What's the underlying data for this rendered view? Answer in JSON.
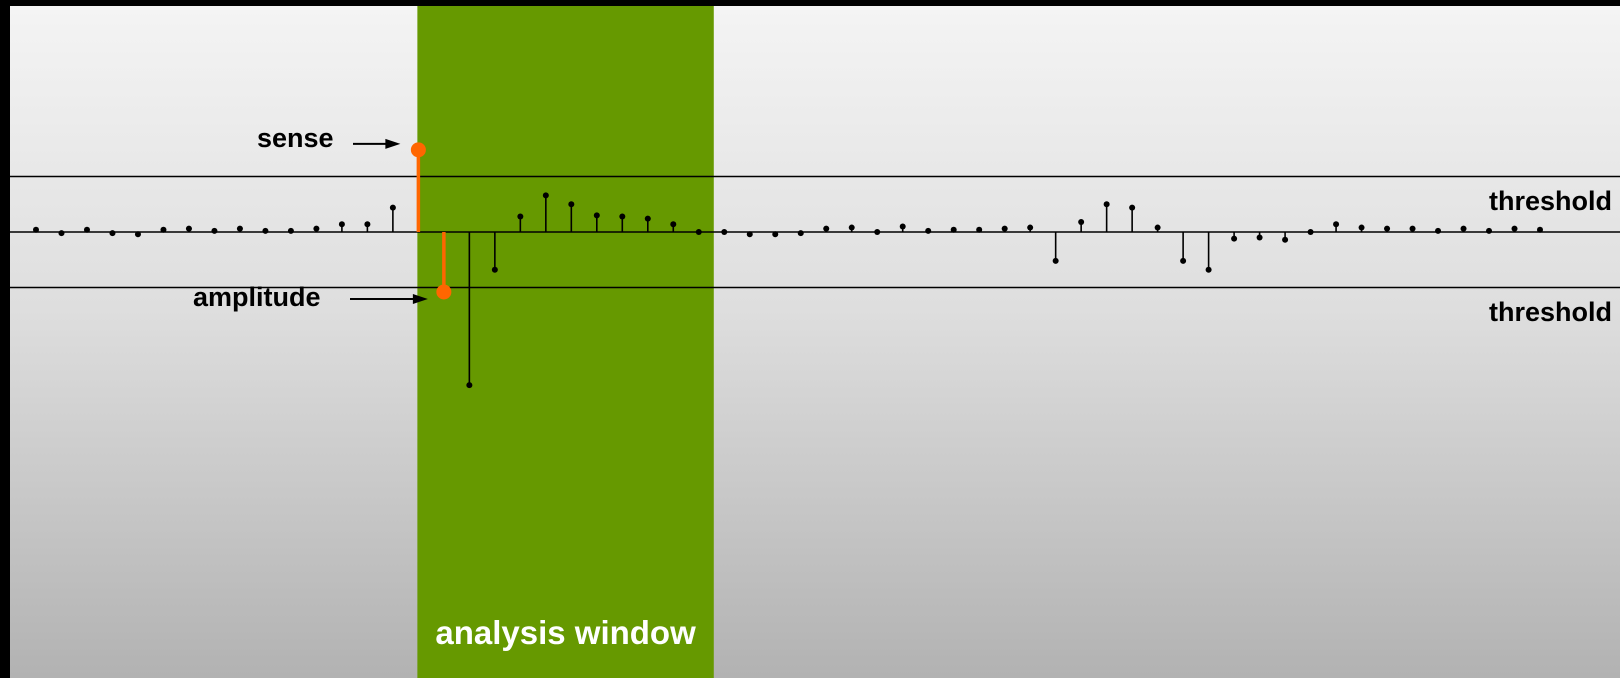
{
  "labels": {
    "sense": "sense",
    "amplitude": "amplitude",
    "threshold_upper": "threshold",
    "threshold_lower": "threshold",
    "analysis_window": "analysis window"
  },
  "colors": {
    "window": "#669900",
    "highlight": "#ff6600",
    "stem": "#000000",
    "window_text": "#ffffff"
  },
  "chart_data": {
    "type": "stem",
    "title": "",
    "xlabel": "",
    "ylabel": "",
    "ylim": [
      -1.4,
      0.8
    ],
    "thresholds": [
      0.5,
      -0.5
    ],
    "analysis_window_samples": [
      15,
      26
    ],
    "sense_sample": 15,
    "amplitude_sample": 16,
    "values": [
      0.02,
      -0.01,
      0.02,
      -0.01,
      -0.02,
      0.02,
      0.03,
      0.01,
      0.03,
      0.01,
      0.01,
      0.03,
      0.07,
      0.07,
      0.22,
      0.74,
      -0.54,
      -1.38,
      -0.34,
      0.14,
      0.33,
      0.25,
      0.15,
      0.14,
      0.12,
      0.07,
      0.0,
      0.0,
      -0.02,
      -0.02,
      -0.01,
      0.03,
      0.04,
      0.0,
      0.05,
      0.01,
      0.02,
      0.02,
      0.03,
      0.04,
      -0.26,
      0.09,
      0.25,
      0.22,
      0.04,
      -0.26,
      -0.34,
      -0.06,
      -0.05,
      -0.07,
      0.0,
      0.07,
      0.04,
      0.03,
      0.03,
      0.01,
      0.03,
      0.01,
      0.03,
      0.02
    ]
  }
}
